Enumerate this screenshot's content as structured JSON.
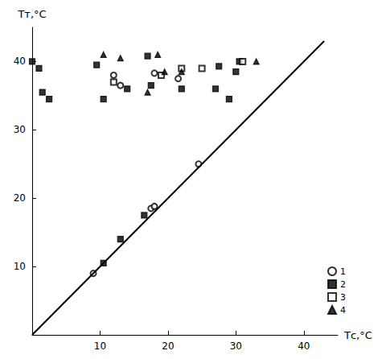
{
  "chart_data": {
    "type": "scatter",
    "x_label": "Tс,°C",
    "y_label": "Tт,°C",
    "xlim": [
      0,
      45
    ],
    "ylim": [
      0,
      45
    ],
    "xticks": [
      10,
      20,
      30,
      40
    ],
    "yticks": [
      10,
      20,
      30,
      40
    ],
    "grid": false,
    "legend": "lower right",
    "series": [
      {
        "name": "1",
        "type": "scatter",
        "marker": "open circle",
        "color": "#000000",
        "x": [
          9,
          17.5,
          18,
          24.5,
          12,
          13,
          18,
          21.5
        ],
        "values": [
          9,
          18.5,
          18.8,
          25,
          38,
          36.5,
          38.3,
          37.5
        ]
      },
      {
        "name": "2",
        "type": "scatter",
        "marker": "filled square",
        "color": "#000000",
        "x": [
          10.5,
          13,
          16.5,
          0,
          1,
          1.5,
          2.5,
          9.5,
          10.5,
          14,
          17,
          17.5,
          22,
          27,
          27.5,
          29,
          30,
          30.5
        ],
        "values": [
          10.5,
          14,
          17.5,
          40,
          39,
          35.5,
          34.5,
          39.5,
          34.5,
          36,
          40.8,
          36.5,
          36,
          36,
          39.3,
          34.5,
          38.5,
          40
        ]
      },
      {
        "name": "3",
        "type": "scatter",
        "marker": "open square",
        "color": "#000000",
        "x": [
          12,
          19,
          22,
          25,
          31
        ],
        "values": [
          37,
          38,
          39,
          39,
          40
        ]
      },
      {
        "name": "4",
        "type": "scatter",
        "marker": "filled triangle",
        "color": "#000000",
        "x": [
          10.5,
          13,
          17,
          18.5,
          19.5,
          22,
          33
        ],
        "values": [
          41,
          40.5,
          35.5,
          41,
          38.5,
          38.5,
          40
        ]
      },
      {
        "type": "line",
        "line_style": "solid",
        "color": "#000000",
        "x": [
          0,
          43
        ],
        "values": [
          0,
          43
        ]
      }
    ]
  }
}
